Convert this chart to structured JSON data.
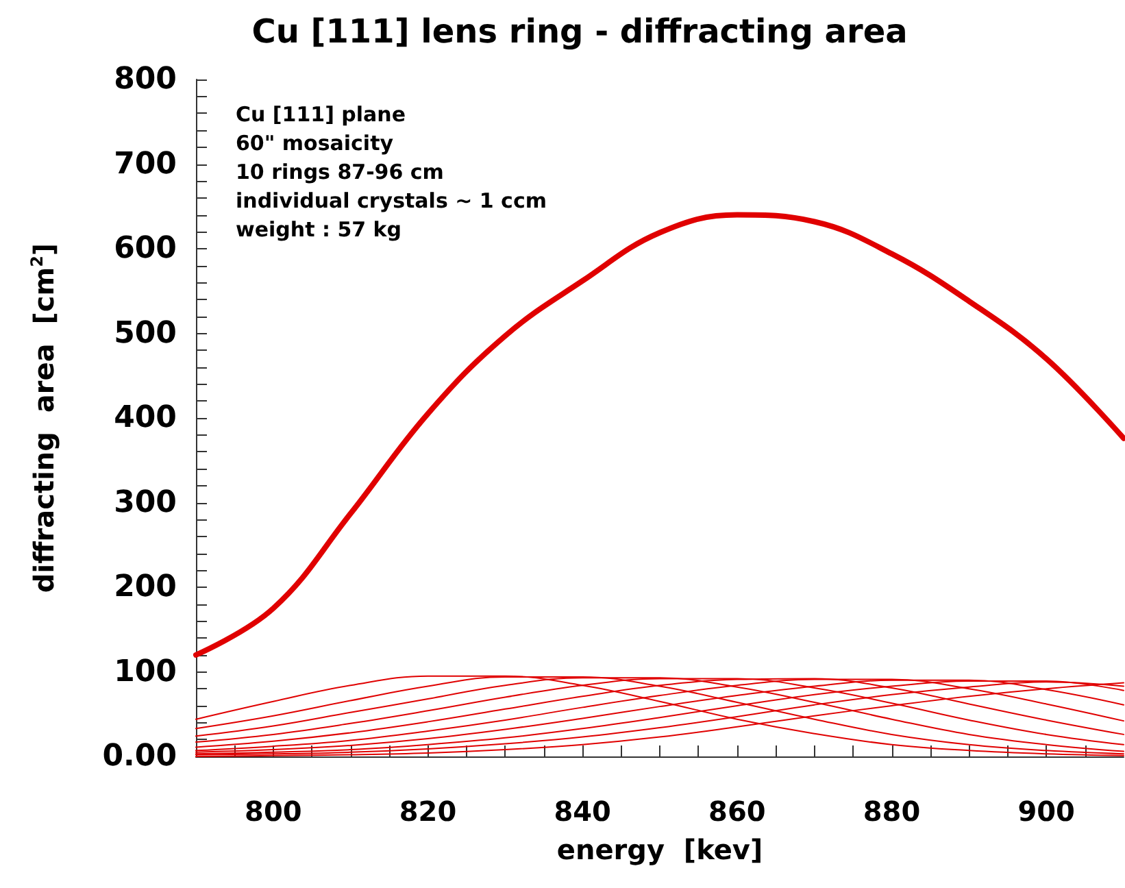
{
  "chart_data": {
    "type": "line",
    "title": "Cu [111] lens ring - diffracting area",
    "xlabel": "energy  [kev]",
    "ylabel": "diffracting  area  [cm$^{2}$]",
    "annotations": [
      "Cu [111] plane",
      "60\" mosaicity",
      "10 rings 87-96 cm",
      "individual crystals ~ 1 ccm",
      "weight : 57 kg"
    ],
    "x": [
      790,
      800,
      810,
      820,
      830,
      840,
      850,
      860,
      870,
      880,
      890,
      900,
      910
    ],
    "xlim": [
      790,
      910
    ],
    "xticks": [
      {
        "value": 790,
        "label": null
      },
      {
        "value": 795,
        "label": null
      },
      800,
      {
        "value": 805,
        "label": null
      },
      {
        "value": 810,
        "label": null
      },
      {
        "value": 815,
        "label": null
      },
      820,
      {
        "value": 825,
        "label": null
      },
      {
        "value": 830,
        "label": null
      },
      {
        "value": 835,
        "label": null
      },
      840,
      {
        "value": 845,
        "label": null
      },
      {
        "value": 850,
        "label": null
      },
      {
        "value": 855,
        "label": null
      },
      860,
      {
        "value": 865,
        "label": null
      },
      {
        "value": 870,
        "label": null
      },
      {
        "value": 875,
        "label": null
      },
      880,
      {
        "value": 885,
        "label": null
      },
      {
        "value": 890,
        "label": null
      },
      {
        "value": 895,
        "label": null
      },
      900,
      {
        "value": 905,
        "label": null
      }
    ],
    "ylim": [
      0,
      800
    ],
    "yticks": [
      {
        "value": 0,
        "label": "0.00"
      },
      {
        "value": 20,
        "label": null
      },
      {
        "value": 40,
        "label": null
      },
      {
        "value": 60,
        "label": null
      },
      {
        "value": 80,
        "label": null
      },
      100,
      {
        "value": 120,
        "label": null
      },
      {
        "value": 140,
        "label": null
      },
      {
        "value": 160,
        "label": null
      },
      {
        "value": 180,
        "label": null
      },
      200,
      {
        "value": 220,
        "label": null
      },
      {
        "value": 240,
        "label": null
      },
      {
        "value": 260,
        "label": null
      },
      {
        "value": 280,
        "label": null
      },
      300,
      {
        "value": 320,
        "label": null
      },
      {
        "value": 340,
        "label": null
      },
      {
        "value": 360,
        "label": null
      },
      {
        "value": 380,
        "label": null
      },
      400,
      {
        "value": 420,
        "label": null
      },
      {
        "value": 440,
        "label": null
      },
      {
        "value": 460,
        "label": null
      },
      {
        "value": 480,
        "label": null
      },
      500,
      {
        "value": 520,
        "label": null
      },
      {
        "value": 540,
        "label": null
      },
      {
        "value": 560,
        "label": null
      },
      {
        "value": 580,
        "label": null
      },
      600,
      {
        "value": 620,
        "label": null
      },
      {
        "value": 640,
        "label": null
      },
      {
        "value": 660,
        "label": null
      },
      {
        "value": 680,
        "label": null
      },
      700,
      {
        "value": 720,
        "label": null
      },
      {
        "value": 740,
        "label": null
      },
      {
        "value": 760,
        "label": null
      },
      {
        "value": 780,
        "label": null
      },
      800
    ],
    "grid": false,
    "marker": "none",
    "line_style": "solid",
    "series": [
      {
        "color": "#e00000",
        "values": [
          120,
          175,
          287,
          405,
          497,
          562,
          619,
          640,
          632,
          594,
          538,
          470,
          376
        ]
      },
      {
        "color": "#e00000",
        "values": [
          44,
          65,
          84,
          95,
          95,
          84,
          65,
          44,
          27,
          14,
          7,
          3,
          1
        ]
      },
      {
        "color": "#e00000",
        "values": [
          33,
          48,
          66,
          83,
          94,
          94,
          83,
          64,
          44,
          26,
          14,
          7,
          3
        ]
      },
      {
        "color": "#e00000",
        "values": [
          24,
          36,
          52,
          68,
          84,
          93,
          93,
          82,
          64,
          44,
          26,
          14,
          6
        ]
      },
      {
        "color": "#e00000",
        "values": [
          17,
          26,
          39,
          54,
          70,
          84,
          92,
          92,
          81,
          63,
          43,
          26,
          14
        ]
      },
      {
        "color": "#e00000",
        "values": [
          11,
          18,
          28,
          41,
          56,
          71,
          84,
          91,
          92,
          81,
          62,
          43,
          26
        ]
      },
      {
        "color": "#e00000",
        "values": [
          7,
          12,
          19,
          30,
          43,
          58,
          72,
          84,
          91,
          91,
          80,
          62,
          42
        ]
      },
      {
        "color": "#e00000",
        "values": [
          5,
          8,
          13,
          21,
          32,
          45,
          59,
          72,
          83,
          90,
          90,
          79,
          61
        ]
      },
      {
        "color": "#e00000",
        "values": [
          3,
          5,
          8,
          14,
          22,
          33,
          46,
          60,
          73,
          83,
          89,
          89,
          78
        ]
      },
      {
        "color": "#e00000",
        "values": [
          2,
          3,
          5,
          9,
          15,
          23,
          34,
          47,
          61,
          73,
          82,
          88,
          83
        ]
      },
      {
        "color": "#e00000",
        "values": [
          0,
          1,
          2,
          4,
          8,
          14,
          23,
          35,
          48,
          60,
          71,
          80,
          87
        ]
      }
    ]
  }
}
